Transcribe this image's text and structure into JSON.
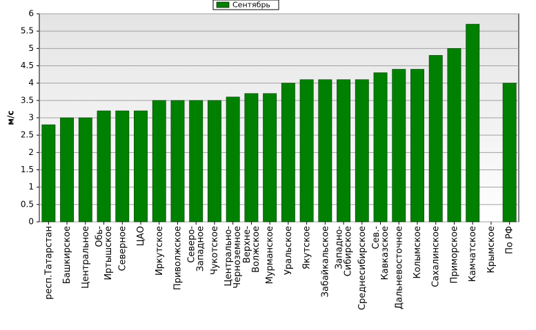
{
  "chart_data": {
    "type": "bar",
    "y_label": "м/с",
    "categories": [
      "респ.Татарстан",
      "Башкирское",
      "Центральное",
      "Обь-Иртышское",
      "Северное",
      "ЦАО",
      "Иркутское",
      "Приволжское",
      "Северо-Западное",
      "Чукотское",
      "Центрально-Черноземное",
      "Верхне-Волжское",
      "Мурманское",
      "Уральское",
      "Якутское",
      "Забайкальское",
      "Западно-Сибирское",
      "Среднесибирское",
      "Сев.-Кавказское",
      "Дальневосточное",
      "Колымское",
      "Сахалинское",
      "Приморское",
      "Камчатское",
      "Крымское",
      "По РФ"
    ],
    "series": [
      {
        "name": "Сентябрь",
        "color": "#008000",
        "values": [
          2.8,
          3,
          3,
          3.2,
          3.2,
          3.2,
          3.5,
          3.5,
          3.5,
          3.5,
          3.6,
          3.7,
          3.7,
          4,
          4.1,
          4.1,
          4.1,
          4.1,
          4.3,
          4.4,
          4.4,
          4.8,
          5,
          5.7,
          null,
          4
        ]
      }
    ],
    "ylim": [
      0,
      6
    ],
    "yticks": [
      0,
      0.5,
      1,
      1.5,
      2,
      2.5,
      3,
      3.5,
      4,
      4.5,
      5,
      5.5,
      6
    ],
    "grid": true,
    "legend": "top"
  }
}
